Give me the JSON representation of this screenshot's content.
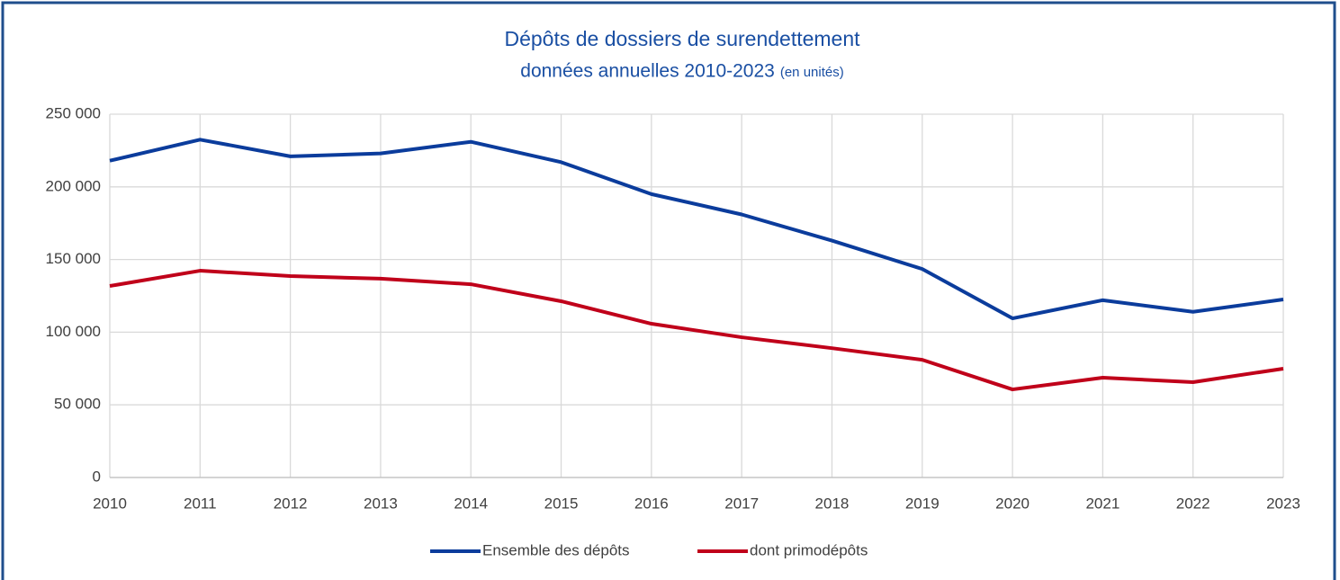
{
  "chart_data": {
    "type": "line",
    "title": "Dépôts de dossiers de surendettement",
    "subtitle": "données annuelles 2010-2023",
    "unit_note": "(en unités)",
    "x": [
      2010,
      2011,
      2012,
      2013,
      2014,
      2015,
      2016,
      2017,
      2018,
      2019,
      2020,
      2021,
      2022,
      2023
    ],
    "xlim": [
      2010,
      2023
    ],
    "xticks": [
      2010,
      2011,
      2012,
      2013,
      2014,
      2015,
      2016,
      2017,
      2018,
      2019,
      2020,
      2021,
      2022,
      2023
    ],
    "ylim": [
      0,
      250000
    ],
    "yticks": [
      {
        "value": 0,
        "label": "0"
      },
      {
        "value": 50000,
        "label": "50 000"
      },
      {
        "value": 100000,
        "label": "100 000"
      },
      {
        "value": 150000,
        "label": "150 000"
      },
      {
        "value": 200000,
        "label": "200 000"
      },
      {
        "value": 250000,
        "label": "250 000"
      }
    ],
    "grid": true,
    "legend": "bottom",
    "series": [
      {
        "name": "Ensemble des dépôts",
        "color": "#0b3c9c",
        "values": [
          218000,
          232500,
          221000,
          223000,
          231000,
          217000,
          195000,
          181000,
          163000,
          143500,
          109500,
          122000,
          114000,
          122500
        ]
      },
      {
        "name": "dont primodépôts",
        "color": "#c0001a",
        "values": [
          131800,
          142300,
          138600,
          136800,
          133000,
          121300,
          105800,
          96500,
          89000,
          81000,
          60600,
          68700,
          65600,
          74900
        ]
      }
    ]
  }
}
